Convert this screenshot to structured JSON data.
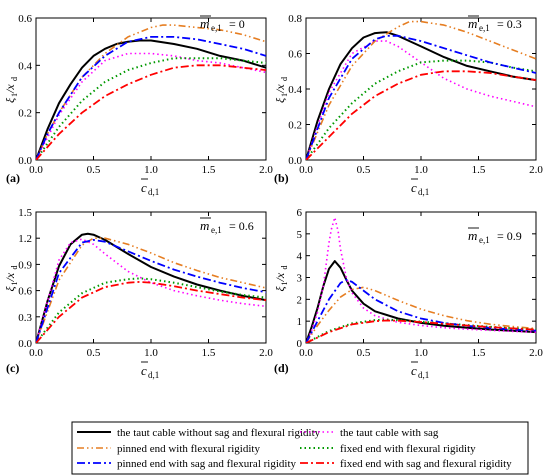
{
  "chart_data": [
    {
      "type": "line",
      "panel_label": "(a)",
      "annotation": {
        "symbol": "m",
        "subscript": "e,1",
        "value": "= 0"
      },
      "xlabel": {
        "symbol": "c",
        "subscript": "d,1"
      },
      "ylabel": {
        "symbol": "ξ",
        "subscript": "1",
        "rest": "/x",
        "rest_sub": "d"
      },
      "xlim": [
        0,
        2.0
      ],
      "ylim": [
        0,
        0.6
      ],
      "xticks": [
        "0.0",
        "0.5",
        "1.0",
        "1.5",
        "2.0"
      ],
      "yticks": [
        "0.0",
        "0.2",
        "0.4",
        "0.6"
      ],
      "series": [
        {
          "name": "the taut cable without sag and flexural rigidity",
          "x": [
            0,
            0.1,
            0.2,
            0.3,
            0.4,
            0.5,
            0.6,
            0.7,
            0.8,
            0.9,
            1.0,
            1.2,
            1.4,
            1.6,
            1.8,
            2.0
          ],
          "values": [
            0,
            0.13,
            0.24,
            0.32,
            0.39,
            0.44,
            0.47,
            0.49,
            0.5,
            0.505,
            0.505,
            0.49,
            0.47,
            0.44,
            0.42,
            0.39
          ]
        },
        {
          "name": "the taut cable with sag",
          "x": [
            0,
            0.2,
            0.4,
            0.6,
            0.8,
            1.0,
            1.2,
            1.4,
            1.6,
            1.8,
            2.0
          ],
          "values": [
            0,
            0.19,
            0.33,
            0.42,
            0.45,
            0.45,
            0.44,
            0.42,
            0.41,
            0.39,
            0.37
          ]
        },
        {
          "name": "pinned end with flexural rigidity",
          "x": [
            0,
            0.1,
            0.2,
            0.4,
            0.6,
            0.8,
            1.0,
            1.1,
            1.2,
            1.4,
            1.6,
            1.8,
            2.0
          ],
          "values": [
            0,
            0.11,
            0.2,
            0.35,
            0.45,
            0.52,
            0.56,
            0.57,
            0.57,
            0.56,
            0.55,
            0.53,
            0.5
          ]
        },
        {
          "name": "fixed end with flexural rigidity",
          "x": [
            0,
            0.2,
            0.4,
            0.6,
            0.8,
            1.0,
            1.2,
            1.4,
            1.6,
            1.8,
            2.0
          ],
          "values": [
            0,
            0.14,
            0.25,
            0.33,
            0.38,
            0.41,
            0.43,
            0.43,
            0.43,
            0.42,
            0.41
          ]
        },
        {
          "name": "pinned end with sag and flexural rigidity",
          "x": [
            0,
            0.1,
            0.2,
            0.4,
            0.6,
            0.8,
            1.0,
            1.2,
            1.4,
            1.6,
            1.8,
            2.0
          ],
          "values": [
            0,
            0.11,
            0.2,
            0.35,
            0.44,
            0.5,
            0.52,
            0.52,
            0.51,
            0.49,
            0.47,
            0.44
          ]
        },
        {
          "name": "fixed end with sag and flexural rigidity",
          "x": [
            0,
            0.2,
            0.4,
            0.6,
            0.8,
            1.0,
            1.2,
            1.4,
            1.6,
            1.8,
            2.0
          ],
          "values": [
            0,
            0.11,
            0.2,
            0.27,
            0.32,
            0.36,
            0.39,
            0.4,
            0.4,
            0.39,
            0.38
          ]
        }
      ]
    },
    {
      "type": "line",
      "panel_label": "(b)",
      "annotation": {
        "symbol": "m",
        "subscript": "e,1",
        "value": "= 0.3"
      },
      "xlabel": {
        "symbol": "c",
        "subscript": "d,1"
      },
      "ylabel": {
        "symbol": "ξ",
        "subscript": "1",
        "rest": "/x",
        "rest_sub": "d"
      },
      "xlim": [
        0,
        2.0
      ],
      "ylim": [
        0,
        0.8
      ],
      "xticks": [
        "0.0",
        "0.5",
        "1.0",
        "1.5",
        "2.0"
      ],
      "yticks": [
        "0.0",
        "0.2",
        "0.4",
        "0.6",
        "0.8"
      ],
      "series": [
        {
          "name": "the taut cable without sag and flexural rigidity",
          "x": [
            0,
            0.1,
            0.2,
            0.3,
            0.4,
            0.5,
            0.6,
            0.7,
            0.8,
            0.9,
            1.0,
            1.2,
            1.4,
            1.6,
            1.8,
            2.0
          ],
          "values": [
            0,
            0.22,
            0.4,
            0.54,
            0.63,
            0.69,
            0.715,
            0.72,
            0.7,
            0.67,
            0.64,
            0.58,
            0.53,
            0.5,
            0.47,
            0.45
          ]
        },
        {
          "name": "the taut cable with sag",
          "x": [
            0,
            0.2,
            0.4,
            0.6,
            0.7,
            0.8,
            1.0,
            1.2,
            1.4,
            1.6,
            1.8,
            2.0
          ],
          "values": [
            0,
            0.38,
            0.6,
            0.67,
            0.67,
            0.64,
            0.55,
            0.46,
            0.4,
            0.36,
            0.33,
            0.3
          ]
        },
        {
          "name": "pinned end with flexural rigidity",
          "x": [
            0,
            0.2,
            0.4,
            0.6,
            0.8,
            0.9,
            1.0,
            1.2,
            1.4,
            1.6,
            1.8,
            2.0
          ],
          "values": [
            0,
            0.31,
            0.53,
            0.67,
            0.75,
            0.78,
            0.78,
            0.76,
            0.72,
            0.67,
            0.62,
            0.57
          ]
        },
        {
          "name": "fixed end with flexural rigidity",
          "x": [
            0,
            0.2,
            0.4,
            0.6,
            0.8,
            1.0,
            1.2,
            1.4,
            1.6,
            1.8,
            2.0
          ],
          "values": [
            0,
            0.18,
            0.32,
            0.43,
            0.5,
            0.55,
            0.56,
            0.56,
            0.55,
            0.52,
            0.5
          ]
        },
        {
          "name": "pinned end with sag and flexural rigidity",
          "x": [
            0,
            0.2,
            0.4,
            0.6,
            0.7,
            0.8,
            1.0,
            1.2,
            1.4,
            1.6,
            1.8,
            2.0
          ],
          "values": [
            0,
            0.35,
            0.57,
            0.68,
            0.7,
            0.7,
            0.67,
            0.63,
            0.59,
            0.55,
            0.52,
            0.49
          ]
        },
        {
          "name": "fixed end with sag and flexural rigidity",
          "x": [
            0,
            0.2,
            0.4,
            0.6,
            0.8,
            1.0,
            1.2,
            1.4,
            1.6,
            1.8,
            2.0
          ],
          "values": [
            0,
            0.13,
            0.26,
            0.36,
            0.43,
            0.48,
            0.5,
            0.5,
            0.49,
            0.47,
            0.45
          ]
        }
      ]
    },
    {
      "type": "line",
      "panel_label": "(c)",
      "annotation": {
        "symbol": "m",
        "subscript": "e,1",
        "value": "= 0.6"
      },
      "xlabel": {
        "symbol": "c",
        "subscript": "d,1"
      },
      "ylabel": {
        "symbol": "ξ",
        "subscript": "1",
        "rest": "/x",
        "rest_sub": "d"
      },
      "xlim": [
        0,
        2.0
      ],
      "ylim": [
        0,
        1.5
      ],
      "xticks": [
        "0.0",
        "0.5",
        "1.0",
        "1.5",
        "2.0"
      ],
      "yticks": [
        "0.0",
        "0.3",
        "0.6",
        "0.9",
        "1.2",
        "1.5"
      ],
      "series": [
        {
          "name": "the taut cable without sag and flexural rigidity",
          "x": [
            0,
            0.1,
            0.2,
            0.3,
            0.4,
            0.45,
            0.5,
            0.6,
            0.7,
            0.8,
            1.0,
            1.2,
            1.4,
            1.6,
            1.8,
            2.0
          ],
          "values": [
            0,
            0.48,
            0.88,
            1.13,
            1.24,
            1.25,
            1.24,
            1.18,
            1.1,
            1.02,
            0.87,
            0.76,
            0.67,
            0.6,
            0.54,
            0.49
          ]
        },
        {
          "name": "the taut cable with sag",
          "x": [
            0,
            0.2,
            0.3,
            0.4,
            0.5,
            0.6,
            0.8,
            1.0,
            1.2,
            1.4,
            1.6,
            1.8,
            2.0
          ],
          "values": [
            0,
            0.95,
            1.15,
            1.19,
            1.13,
            1.02,
            0.82,
            0.69,
            0.6,
            0.54,
            0.49,
            0.45,
            0.42
          ]
        },
        {
          "name": "pinned end with flexural rigidity",
          "x": [
            0,
            0.2,
            0.4,
            0.5,
            0.6,
            0.8,
            1.0,
            1.2,
            1.4,
            1.6,
            1.8,
            2.0
          ],
          "values": [
            0,
            0.72,
            1.12,
            1.2,
            1.2,
            1.13,
            1.03,
            0.92,
            0.83,
            0.75,
            0.69,
            0.63
          ]
        },
        {
          "name": "fixed end with flexural rigidity",
          "x": [
            0,
            0.2,
            0.4,
            0.6,
            0.8,
            0.9,
            1.0,
            1.2,
            1.4,
            1.6,
            1.8,
            2.0
          ],
          "values": [
            0,
            0.35,
            0.57,
            0.69,
            0.73,
            0.74,
            0.73,
            0.69,
            0.64,
            0.59,
            0.55,
            0.52
          ]
        },
        {
          "name": "pinned end with sag and flexural rigidity",
          "x": [
            0,
            0.2,
            0.4,
            0.5,
            0.6,
            0.8,
            1.0,
            1.2,
            1.4,
            1.6,
            1.8,
            2.0
          ],
          "values": [
            0,
            0.8,
            1.15,
            1.18,
            1.16,
            1.05,
            0.94,
            0.84,
            0.76,
            0.69,
            0.63,
            0.58
          ]
        },
        {
          "name": "fixed end with sag and flexural rigidity",
          "x": [
            0,
            0.2,
            0.4,
            0.6,
            0.8,
            0.9,
            1.0,
            1.2,
            1.4,
            1.6,
            1.8,
            2.0
          ],
          "values": [
            0,
            0.3,
            0.52,
            0.64,
            0.69,
            0.7,
            0.69,
            0.65,
            0.6,
            0.56,
            0.52,
            0.49
          ]
        }
      ]
    },
    {
      "type": "line",
      "panel_label": "(d)",
      "annotation": {
        "symbol": "m",
        "subscript": "e,1",
        "value": "= 0.9"
      },
      "xlabel": {
        "symbol": "c",
        "subscript": "d,1"
      },
      "ylabel": {
        "symbol": "ξ",
        "subscript": "1",
        "rest": "/x",
        "rest_sub": "d"
      },
      "xlim": [
        0,
        2.0
      ],
      "ylim": [
        0,
        6
      ],
      "xticks": [
        "0.0",
        "0.5",
        "1.0",
        "1.5",
        "2.0"
      ],
      "yticks": [
        "0",
        "1",
        "2",
        "3",
        "4",
        "5",
        "6"
      ],
      "series": [
        {
          "name": "the taut cable without sag and flexural rigidity",
          "x": [
            0,
            0.05,
            0.1,
            0.15,
            0.2,
            0.25,
            0.3,
            0.35,
            0.4,
            0.5,
            0.6,
            0.8,
            1.0,
            1.2,
            1.4,
            1.6,
            1.8,
            2.0
          ],
          "values": [
            0,
            0.75,
            1.6,
            2.6,
            3.4,
            3.75,
            3.45,
            2.9,
            2.4,
            1.8,
            1.45,
            1.12,
            0.92,
            0.79,
            0.7,
            0.62,
            0.56,
            0.5
          ]
        },
        {
          "name": "the taut cable with sag",
          "x": [
            0,
            0.05,
            0.1,
            0.15,
            0.2,
            0.22,
            0.25,
            0.28,
            0.3,
            0.35,
            0.4,
            0.5,
            0.6,
            0.8,
            1.0,
            1.2,
            1.4,
            1.6,
            1.8,
            2.0
          ],
          "values": [
            0,
            0.6,
            1.4,
            2.6,
            4.6,
            5.2,
            5.75,
            5.1,
            4.3,
            3.0,
            2.3,
            1.6,
            1.25,
            0.95,
            0.8,
            0.7,
            0.63,
            0.58,
            0.53,
            0.49
          ]
        },
        {
          "name": "pinned end with flexural rigidity",
          "x": [
            0,
            0.1,
            0.2,
            0.3,
            0.4,
            0.5,
            0.6,
            0.8,
            1.0,
            1.2,
            1.4,
            1.6,
            1.8,
            2.0
          ],
          "values": [
            0,
            0.8,
            1.5,
            2.1,
            2.45,
            2.55,
            2.4,
            1.95,
            1.55,
            1.25,
            1.02,
            0.86,
            0.75,
            0.66
          ]
        },
        {
          "name": "fixed end with flexural rigidity",
          "x": [
            0,
            0.2,
            0.4,
            0.6,
            0.7,
            0.8,
            1.0,
            1.2,
            1.4,
            1.6,
            1.8,
            2.0
          ],
          "values": [
            0,
            0.55,
            0.9,
            1.05,
            1.07,
            1.05,
            0.98,
            0.9,
            0.82,
            0.74,
            0.68,
            0.62
          ]
        },
        {
          "name": "pinned end with sag and flexural rigidity",
          "x": [
            0,
            0.1,
            0.2,
            0.3,
            0.35,
            0.4,
            0.5,
            0.6,
            0.8,
            1.0,
            1.2,
            1.4,
            1.6,
            1.8,
            2.0
          ],
          "values": [
            0,
            1.0,
            2.0,
            2.75,
            2.9,
            2.8,
            2.4,
            2.0,
            1.45,
            1.12,
            0.92,
            0.79,
            0.69,
            0.62,
            0.57
          ]
        },
        {
          "name": "fixed end with sag and flexural rigidity",
          "x": [
            0,
            0.2,
            0.4,
            0.6,
            0.7,
            0.8,
            1.0,
            1.2,
            1.4,
            1.6,
            1.8,
            2.0
          ],
          "values": [
            0,
            0.5,
            0.85,
            1.0,
            1.03,
            1.02,
            0.96,
            0.88,
            0.8,
            0.73,
            0.67,
            0.61
          ]
        }
      ]
    }
  ],
  "legend": {
    "items": [
      {
        "label": "the taut cable without sag and flexural rigidity",
        "color": "#000000",
        "dash": "solid",
        "width": 2
      },
      {
        "label": "the taut cable with sag",
        "color": "#ff00ff",
        "dash": "dot",
        "width": 1.6
      },
      {
        "label": "pinned end with flexural rigidity",
        "color": "#e67e22",
        "dash": "dashdotdot",
        "width": 1.6
      },
      {
        "label": "fixed end with flexural rigidity",
        "color": "#009900",
        "dash": "dot",
        "width": 2
      },
      {
        "label": "pinned end with sag and flexural rigidity",
        "color": "#0000ff",
        "dash": "dashdot",
        "width": 1.8
      },
      {
        "label": "fixed end with sag and flexural rigidity",
        "color": "#ff0000",
        "dash": "dashdot",
        "width": 1.8
      }
    ]
  }
}
